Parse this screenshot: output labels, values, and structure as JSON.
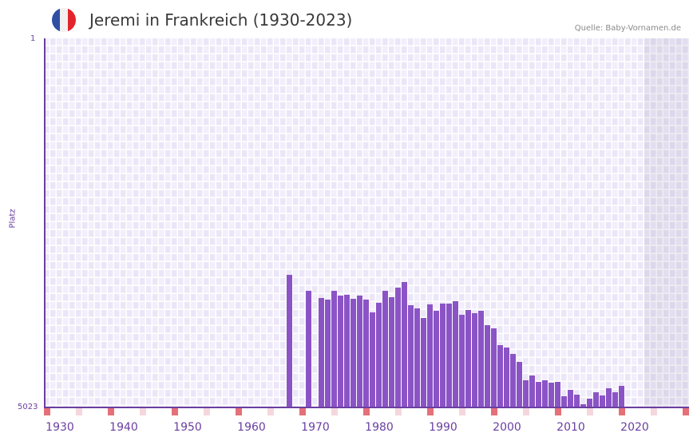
{
  "header": {
    "title": "Jeremi in Frankreich (1930-2023)",
    "source": "Quelle: Baby-Vornamen.de",
    "flag_colors": [
      "#2f4fa3",
      "#f1f1f1",
      "#e3242b"
    ]
  },
  "colors": {
    "bar": "#8b54c6",
    "axis": "#6a3fa0",
    "grid_cell_a": "#f2eefb",
    "grid_cell_b": "#ebe6f7",
    "decade_marker": "#e57077",
    "half_decade_marker": "#f6d6dd",
    "future_shade": "#e3dfec"
  },
  "axis": {
    "y_top_label": "1",
    "y_bottom_label": "5023",
    "y_title": "Platz",
    "x_ticks": [
      "1930",
      "1940",
      "1950",
      "1960",
      "1970",
      "1980",
      "1990",
      "2000",
      "2010",
      "2020"
    ]
  },
  "chart_data": {
    "type": "bar",
    "title": "Jeremi in Frankreich (1930-2023)",
    "xlabel": "",
    "ylabel": "Platz",
    "ylim": [
      5023,
      1
    ],
    "y_inverted": true,
    "x_range": [
      1928,
      2028
    ],
    "shaded_future_from": 2022,
    "grid": true,
    "legend": null,
    "categories": [
      1966,
      1969,
      1971,
      1972,
      1973,
      1974,
      1975,
      1976,
      1977,
      1978,
      1979,
      1980,
      1981,
      1982,
      1983,
      1984,
      1985,
      1986,
      1987,
      1988,
      1989,
      1990,
      1991,
      1992,
      1993,
      1994,
      1995,
      1996,
      1997,
      1998,
      1999,
      2000,
      2001,
      2002,
      2003,
      2004,
      2005,
      2006,
      2007,
      2008,
      2009,
      2010,
      2011,
      2012,
      2013,
      2014,
      2015,
      2016,
      2017,
      2018
    ],
    "values": [
      3218,
      3435,
      3533,
      3555,
      3435,
      3501,
      3490,
      3544,
      3501,
      3555,
      3729,
      3599,
      3435,
      3523,
      3393,
      3316,
      3632,
      3675,
      3806,
      3621,
      3708,
      3610,
      3610,
      3577,
      3762,
      3697,
      3740,
      3708,
      3904,
      3947,
      4175,
      4208,
      4295,
      4404,
      4654,
      4588,
      4675,
      4654,
      4686,
      4675,
      4871,
      4784,
      4849,
      4979,
      4903,
      4817,
      4860,
      4762,
      4817,
      4730
    ]
  }
}
